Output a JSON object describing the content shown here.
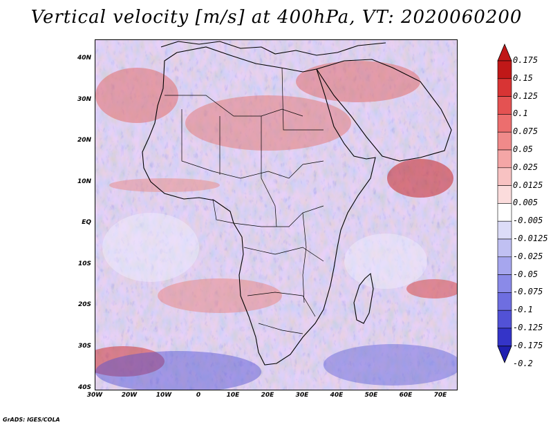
{
  "title": "Vertical velocity [m/s] at 400hPa, VT: 2020060200",
  "footer": "GrADS: IGES/COLA",
  "lat_labels": [
    "40N",
    "30N",
    "20N",
    "10N",
    "EQ",
    "10S",
    "20S",
    "30S",
    "40S"
  ],
  "lon_labels": [
    "30W",
    "20W",
    "10W",
    "0",
    "10E",
    "20E",
    "30E",
    "40E",
    "50E",
    "60E",
    "70E"
  ],
  "colorbar": {
    "labels": [
      "0.175",
      "0.15",
      "0.125",
      "0.1",
      "0.075",
      "0.05",
      "0.025",
      "0.0125",
      "0.005",
      "-0.005",
      "-0.0125",
      "-0.025",
      "-0.05",
      "-0.075",
      "-0.1",
      "-0.125",
      "-0.175",
      "-0.2"
    ],
    "colors": [
      "#c01818",
      "#d83434",
      "#e45252",
      "#ec6e6e",
      "#f08a8a",
      "#f4a6a6",
      "#f8c2c2",
      "#fbdcdc",
      "#ffffff",
      "#dcdcf8",
      "#c0c0f2",
      "#a6a6ee",
      "#8a8ae8",
      "#6e6ee0",
      "#5252d6",
      "#3434c8",
      "#2020b0"
    ]
  }
}
